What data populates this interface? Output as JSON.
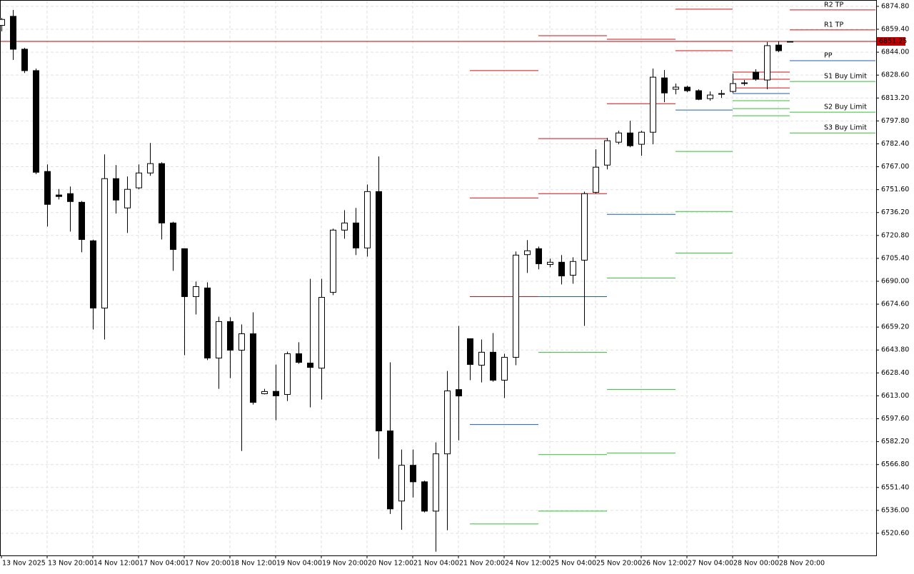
{
  "chart_data": {
    "type": "candlestick",
    "categories": [
      "13 Nov 2025",
      null,
      null,
      null,
      "13 Nov 20:00",
      null,
      null,
      null,
      "14 Nov 12:00",
      null,
      null,
      null,
      "17 Nov 04:00",
      null,
      null,
      null,
      "17 Nov 20:00",
      null,
      null,
      null,
      "18 Nov 12:00",
      null,
      null,
      null,
      "19 Nov 04:00",
      null,
      null,
      null,
      "19 Nov 20:00",
      null,
      null,
      null,
      "20 Nov 12:00",
      null,
      null,
      null,
      "21 Nov 04:00",
      null,
      null,
      null,
      "21 Nov 20:00",
      null,
      null,
      null,
      "24 Nov 12:00",
      null,
      null,
      null,
      "25 Nov 04:00",
      null,
      null,
      null,
      "25 Nov 20:00",
      null,
      null,
      null,
      "26 Nov 12:00",
      null,
      null,
      null,
      "27 Nov 04:00",
      null,
      null,
      null,
      "28 Nov 00:00",
      null,
      null,
      null,
      "28 Nov 20:00",
      null
    ],
    "open": [
      6862,
      6868.1,
      6846,
      6831.6,
      6763.8,
      6748,
      6748.9,
      6743.1,
      6717.2,
      6672,
      6759,
      6739.3,
      6752.8,
      6762.8,
      6769.1,
      6729.2,
      6711.9,
      6679.7,
      6685.5,
      6638.4,
      6662.9,
      6643.7,
      6654.7,
      6614.4,
      6616,
      6613.9,
      6641.3,
      6635,
      6631.6,
      6682.6,
      6724.4,
      6729.2,
      6712.4,
      6750.3,
      6589.4,
      6542.3,
      6566.3,
      6555.2,
      6535.5,
      6574,
      6617.2,
      6651.4,
      6633.6,
      6642.3,
      6623.5,
      6638.9,
      6707.9,
      6711.9,
      6701.3,
      6702.8,
      6694.1,
      6704.2,
      6749.8,
      6768.1,
      6783.5,
      6789.7,
      6782.1,
      6790.2,
      6826.7,
      6819.1,
      6820.5,
      6818.1,
      6812.8,
      6815.7,
      6817.6,
      6823.3,
      6830.6,
      6825.3,
      6848.8,
      6850.8
    ],
    "high": [
      6867,
      6872.4,
      6847,
      6833,
      6768.6,
      6752,
      6753.7,
      6744,
      6718,
      6775.3,
      6768.1,
      6760.4,
      6768.6,
      6783,
      6770,
      6730,
      6712,
      6689.8,
      6689.3,
      6666.2,
      6665.8,
      6661,
      6669.1,
      6617.7,
      6634,
      6642.7,
      6649,
      6691.7,
      6691.7,
      6725.4,
      6737.8,
      6739.3,
      6755.1,
      6773.9,
      6635.5,
      6576.9,
      6576.9,
      6556,
      6581.7,
      6629.7,
      6660,
      6651.5,
      6650.9,
      6655.2,
      6641.3,
      6710,
      6717.7,
      6713.3,
      6705.2,
      6707.6,
      6706.1,
      6750.3,
      6778.7,
      6786.4,
      6791.2,
      6797.9,
      6791.2,
      6833,
      6832,
      6822.9,
      6821.5,
      6819,
      6817.6,
      6818.6,
      6829.6,
      6825.3,
      6832.5,
      6850.8,
      6851.2,
      6851.5
    ],
    "low": [
      6858,
      6838.8,
      6830,
      6762,
      6726.8,
      6745,
      6723.4,
      6709.5,
      6657.6,
      6650.9,
      6735.5,
      6722.5,
      6751.8,
      6760.9,
      6718.1,
      6697,
      6640.3,
      6667.7,
      6637,
      6617.7,
      6624.9,
      6575.9,
      6607.1,
      6614,
      6596.6,
      6609.5,
      6634.5,
      6605.2,
      6610.5,
      6680.7,
      6718.6,
      6707.6,
      6706.6,
      6570.6,
      6533.6,
      6523,
      6544.7,
      6534.6,
      6508.2,
      6522.6,
      6583.1,
      6623.5,
      6622,
      6622.5,
      6611.5,
      6633.6,
      6695.6,
      6698,
      6699.4,
      6687.9,
      6688.4,
      6660,
      6748.9,
      6765.2,
      6782.1,
      6780.1,
      6774.4,
      6782.1,
      6810.4,
      6815.7,
      6817.1,
      6811.8,
      6811.4,
      6813.3,
      6816.6,
      6821.5,
      6824.8,
      6819.1,
      6844,
      6850.6
    ],
    "close": [
      6866,
      6846,
      6831.6,
      6763.3,
      6741.7,
      6747,
      6743.6,
      6718.1,
      6672,
      6759,
      6744.6,
      6751.8,
      6762.8,
      6769.1,
      6729.2,
      6711.4,
      6679.7,
      6686.4,
      6638.4,
      6662.9,
      6643.7,
      6654.7,
      6608.6,
      6615.9,
      6613,
      6641.3,
      6635.5,
      6632.1,
      6679.2,
      6724.4,
      6729.2,
      6712.4,
      6750.3,
      6589.4,
      6537,
      6566.3,
      6555.2,
      6535.5,
      6574,
      6616.3,
      6612.9,
      6634.1,
      6642.3,
      6623.5,
      6638.9,
      6707.6,
      6710.5,
      6701.8,
      6702.8,
      6693.6,
      6703.3,
      6748.9,
      6766.7,
      6784.5,
      6789.7,
      6781.1,
      6790.2,
      6827.2,
      6816.6,
      6820.5,
      6818.1,
      6812.3,
      6815.2,
      6816.2,
      6822.9,
      6823.4,
      6825.8,
      6848.4,
      6845,
      6851.25
    ],
    "up_color": "#ffffff",
    "down_color": "#000000",
    "ylim": [
      6505.7,
      6878.6
    ],
    "yticks": [
      {
        "value": 6874.8,
        "label": "6874.80"
      },
      {
        "value": 6859.4,
        "label": "6859.40"
      },
      {
        "value": 6844,
        "label": "6844.00"
      },
      {
        "value": 6828.6,
        "label": "6828.60"
      },
      {
        "value": 6813.2,
        "label": "6813.20"
      },
      {
        "value": 6797.8,
        "label": "6797.80"
      },
      {
        "value": 6782.4,
        "label": "6782.40"
      },
      {
        "value": 6767,
        "label": "6767.00"
      },
      {
        "value": 6751.6,
        "label": "6751.60"
      },
      {
        "value": 6736.2,
        "label": "6736.20"
      },
      {
        "value": 6720.8,
        "label": "6720.80"
      },
      {
        "value": 6705.4,
        "label": "6705.40"
      },
      {
        "value": 6690,
        "label": "6690.00"
      },
      {
        "value": 6674.6,
        "label": "6674.60"
      },
      {
        "value": 6659.2,
        "label": "6659.20"
      },
      {
        "value": 6643.8,
        "label": "6643.80"
      },
      {
        "value": 6628.4,
        "label": "6628.40"
      },
      {
        "value": 6613,
        "label": "6613.00"
      },
      {
        "value": 6597.6,
        "label": "6597.60"
      },
      {
        "value": 6582.2,
        "label": "6582.20"
      },
      {
        "value": 6566.8,
        "label": "6566.80"
      },
      {
        "value": 6551.4,
        "label": "6551.40"
      },
      {
        "value": 6536,
        "label": "6536.00"
      },
      {
        "value": 6520.6,
        "label": "6520.60"
      }
    ],
    "grid": true,
    "last_price": 6851.25,
    "last_price_color": "#c00000",
    "resistance_color": "#d01010",
    "pivot_color": "#1f5fb0",
    "support_color": "#33c033",
    "pivot_sets": [
      {
        "start": 41,
        "end": 47,
        "resistance": [
          6831.6,
          6746,
          6679.7
        ],
        "pivot": 6593.7,
        "support": [
          6526.9
        ]
      },
      {
        "start": 47,
        "end": 53,
        "resistance": [
          6855.1,
          6785.9,
          6748.9
        ],
        "pivot": 6679.7,
        "support": [
          6642.2,
          6573.5,
          6535.5
        ]
      },
      {
        "start": 53,
        "end": 59,
        "resistance": [
          6852.7,
          6809.4
        ],
        "pivot": 6735,
        "support": [
          6692.2,
          6617.2,
          6574.5
        ]
      },
      {
        "start": 59,
        "end": 64,
        "resistance": [
          6872.9,
          6845
        ],
        "pivot": 6805.1,
        "support": [
          6777.3,
          6736.9,
          6709
        ]
      },
      {
        "start": 64,
        "end": 69,
        "resistance": [
          6830.6,
          6825.8,
          6820
        ],
        "pivot": 6816.2,
        "support": [
          6811.4,
          6806.1,
          6801.3
        ]
      },
      {
        "start": 69,
        "end": 76.5,
        "resistance": [
          6872.4,
          6859
        ],
        "resistance_labels": [
          "R2 TP",
          "R1 TP"
        ],
        "pivot": 6838.3,
        "pivot_label": "PP",
        "support": [
          6824.3,
          6803.7,
          6789.7
        ],
        "support_labels": [
          "S1 Buy Limit",
          "S2 Buy Limit",
          "S3 Buy Limit"
        ]
      }
    ]
  }
}
